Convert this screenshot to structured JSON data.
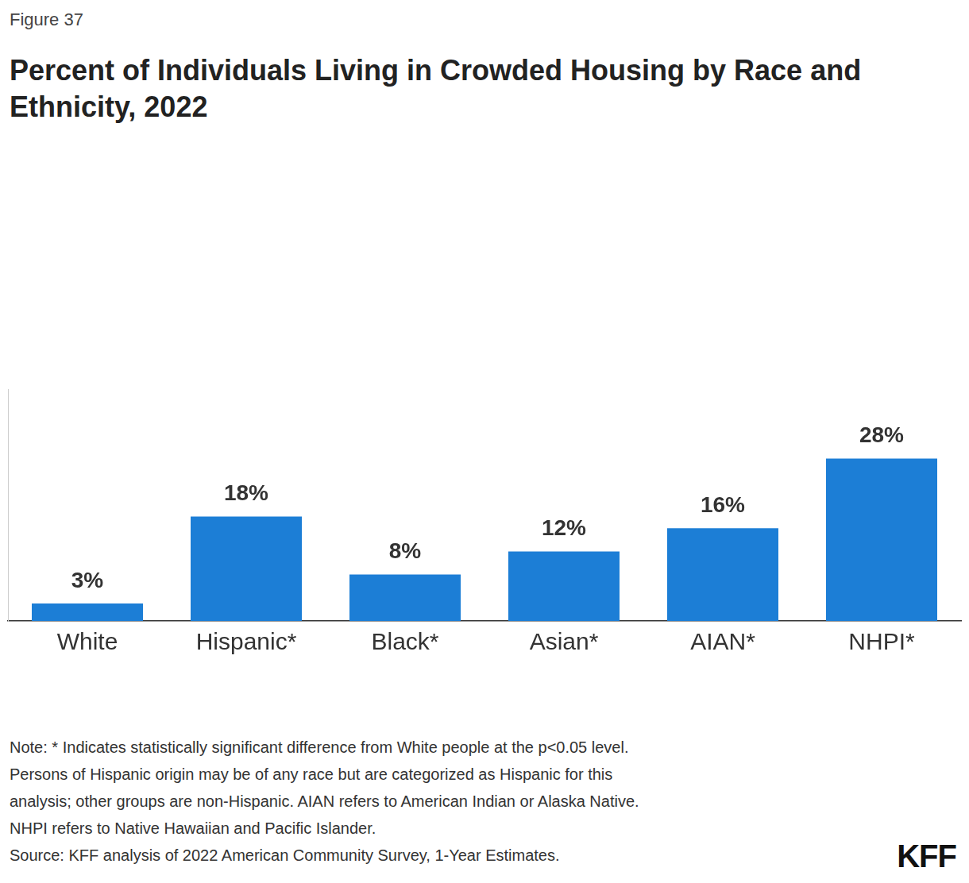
{
  "chart_data": {
    "type": "bar",
    "figure_label": "Figure 37",
    "title": "Percent of Individuals Living in Crowded Housing by Race and Ethnicity, 2022",
    "categories": [
      "White",
      "Hispanic*",
      "Black*",
      "Asian*",
      "AIAN*",
      "NHPI*"
    ],
    "values": [
      3,
      18,
      8,
      12,
      16,
      28
    ],
    "value_labels": [
      "3%",
      "18%",
      "8%",
      "12%",
      "16%",
      "28%"
    ],
    "color": "#1c7ed6",
    "ylim": [
      0,
      40
    ],
    "grid": false,
    "data_labels": true,
    "tick_labels": "x",
    "note": [
      "Note: * Indicates statistically significant difference from White people at the p<0.05 level.",
      "Persons of Hispanic origin may be of any race but are categorized as Hispanic for this",
      "analysis; other groups are non-Hispanic. AIAN refers to American Indian or Alaska Native.",
      "NHPI refers to Native Hawaiian and Pacific Islander."
    ],
    "source": "Source: KFF analysis of 2022 American Community Survey, 1-Year Estimates.",
    "logo": "KFF"
  }
}
